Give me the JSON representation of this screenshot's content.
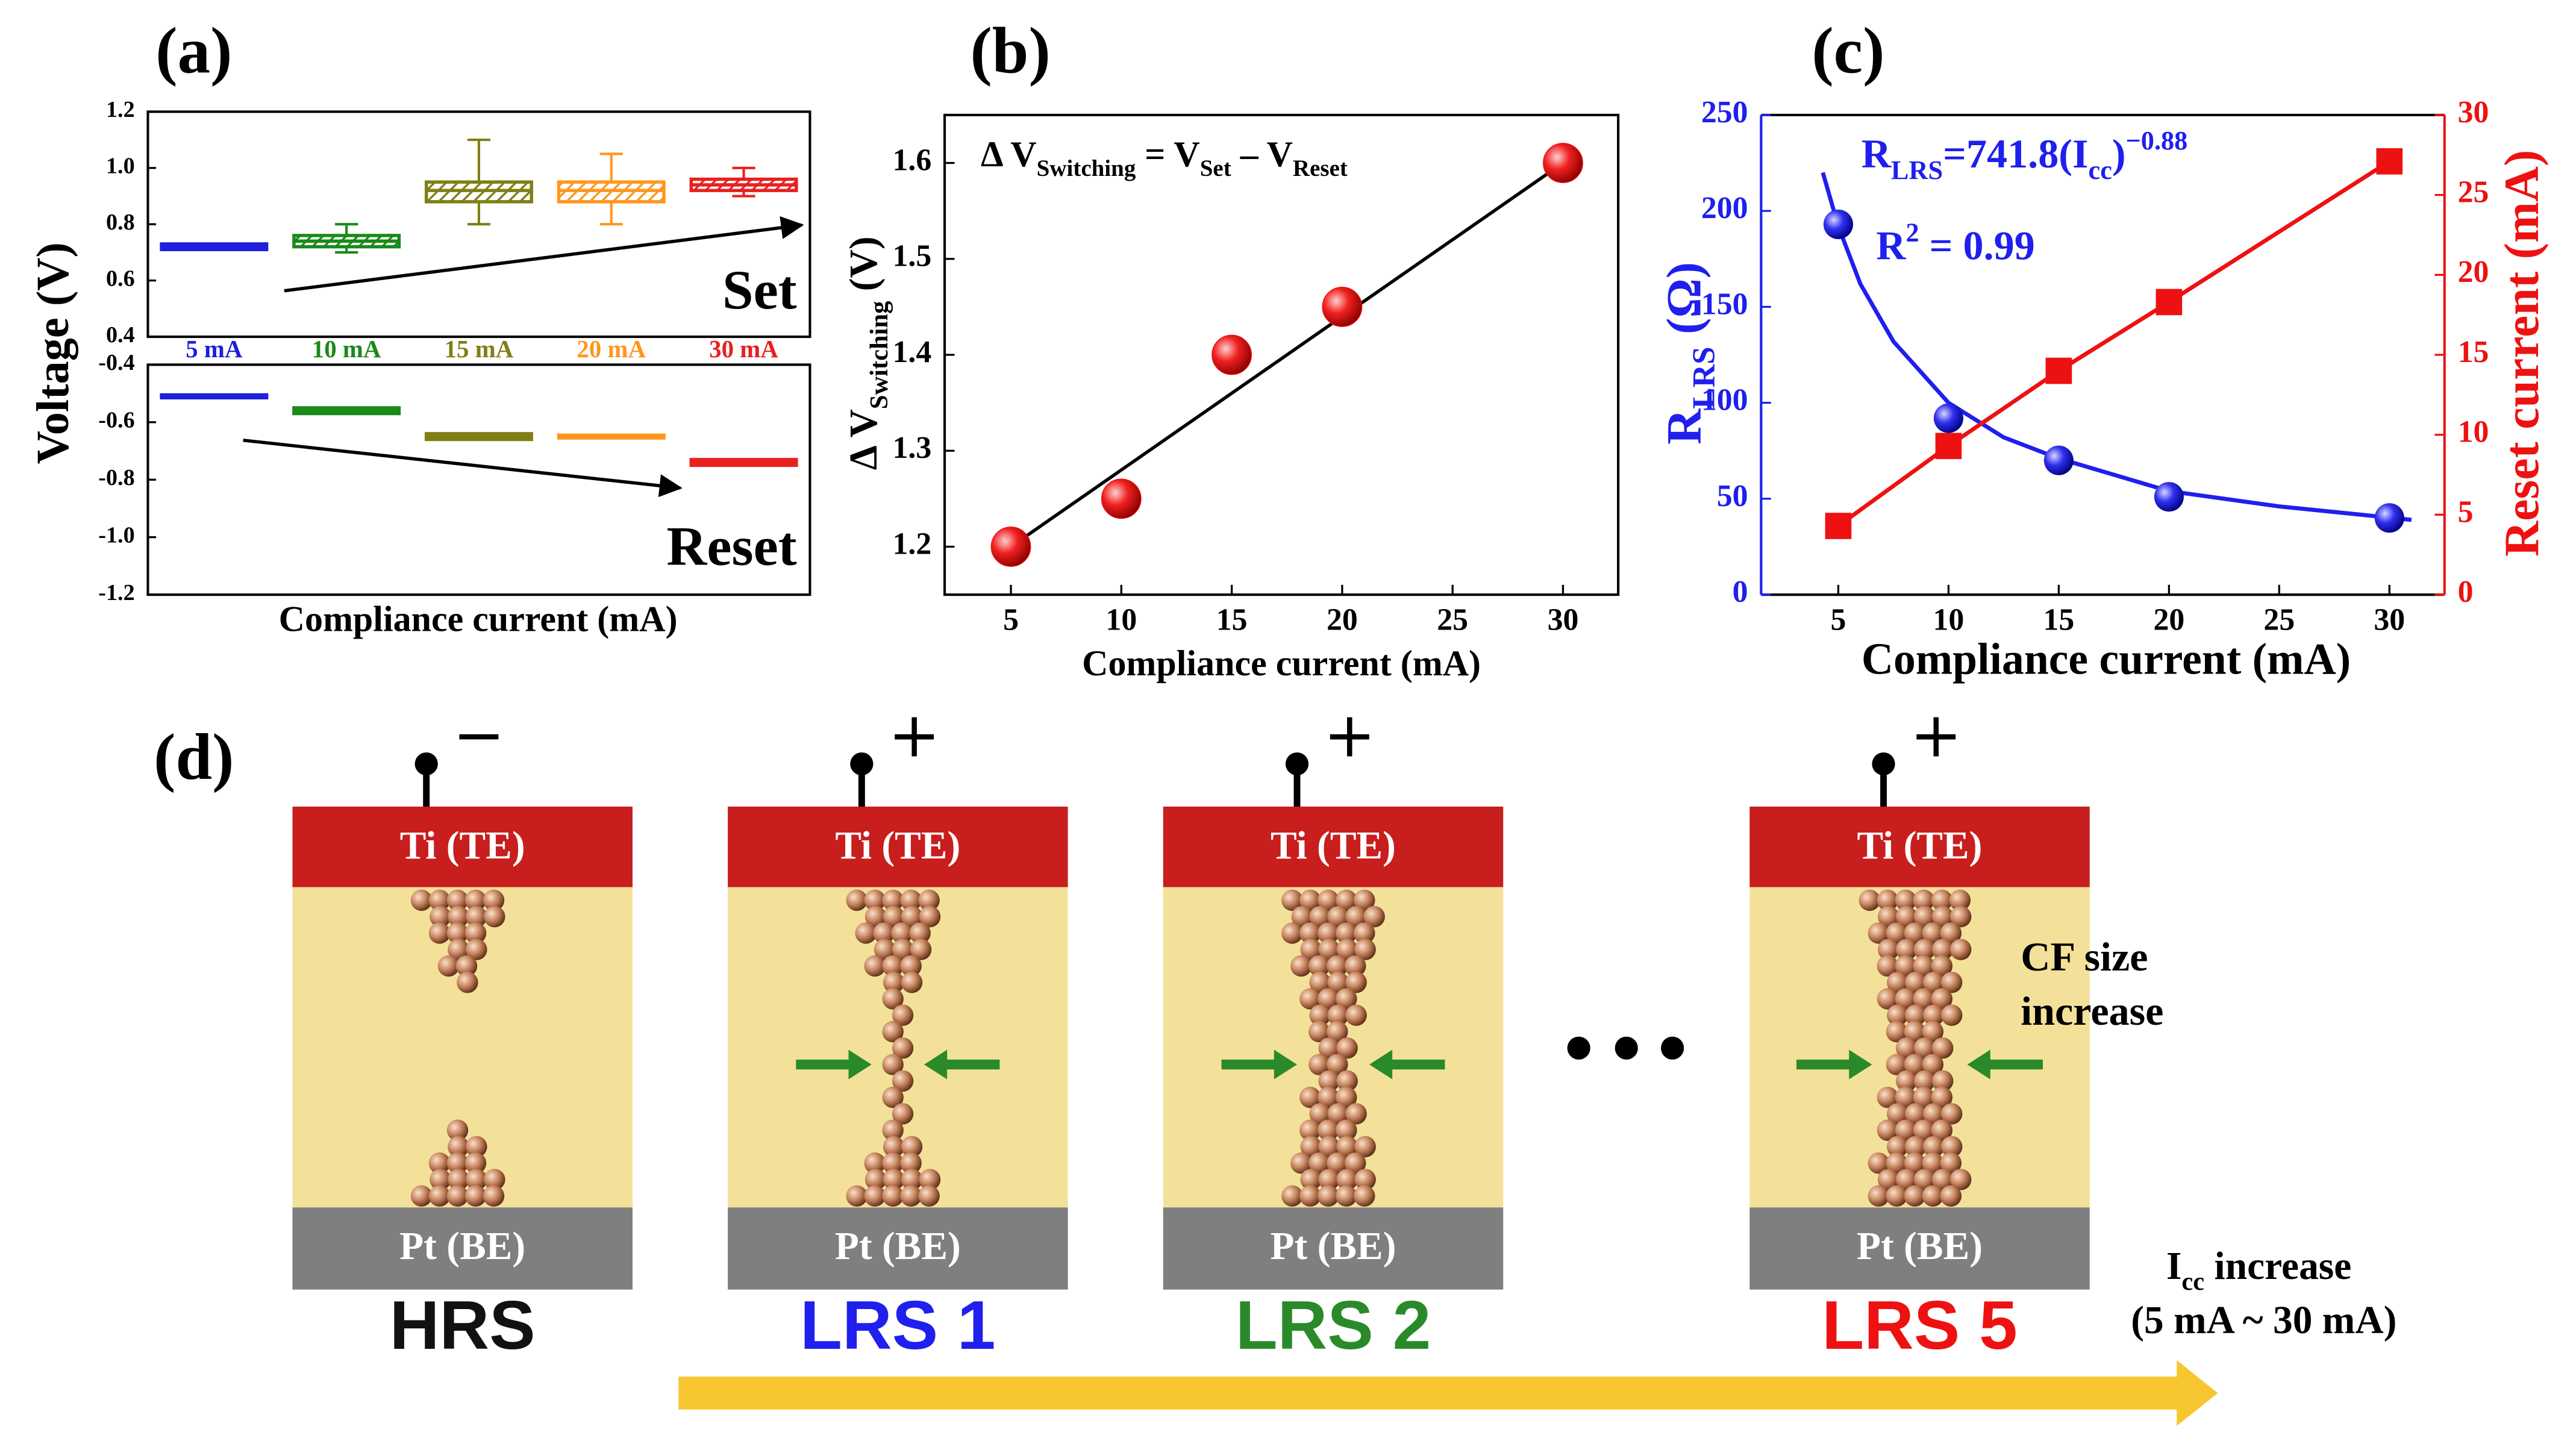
{
  "chart_data": [
    {
      "type": "box",
      "label": "(a)",
      "ylabel": "Voltage (V)",
      "xlabel": "Compliance current (mA)",
      "categories": [
        "5 mA",
        "10 mA",
        "15 mA",
        "20 mA",
        "30 mA"
      ],
      "colors": [
        "#1f1fdd",
        "#1a8a1a",
        "#7f7f14",
        "#ff961e",
        "#e82020"
      ],
      "panels": [
        {
          "annotation": "Set",
          "ylim": [
            0.4,
            1.2
          ],
          "yticks": [
            0.4,
            0.6,
            0.8,
            {
              "value": 1.0,
              "label": "1.0"
            },
            1.2
          ],
          "boxes": [
            {
              "q1": 0.71,
              "median": 0.72,
              "q3": 0.73,
              "whisker_low": 0.71,
              "whisker_high": 0.73
            },
            {
              "q1": 0.72,
              "median": 0.74,
              "q3": 0.76,
              "whisker_low": 0.7,
              "whisker_high": 0.8
            },
            {
              "q1": 0.88,
              "median": 0.92,
              "q3": 0.95,
              "whisker_low": 0.8,
              "whisker_high": 1.1
            },
            {
              "q1": 0.88,
              "median": 0.92,
              "q3": 0.95,
              "whisker_low": 0.8,
              "whisker_high": 1.05
            },
            {
              "q1": 0.92,
              "median": 0.94,
              "q3": 0.96,
              "whisker_low": 0.9,
              "whisker_high": 1.0
            }
          ]
        },
        {
          "annotation": "Reset",
          "ylim": [
            -1.2,
            -0.4
          ],
          "yticks": [
            -0.4,
            -0.6,
            -0.8,
            {
              "value": -1.0,
              "label": "-1.0"
            },
            -1.2
          ],
          "boxes": [
            {
              "q1": -0.515,
              "median": -0.51,
              "q3": -0.505,
              "whisker_low": -0.515,
              "whisker_high": -0.505
            },
            {
              "q1": -0.57,
              "median": -0.56,
              "q3": -0.55,
              "whisker_low": -0.57,
              "whisker_high": -0.55
            },
            {
              "q1": -0.66,
              "median": -0.65,
              "q3": -0.64,
              "whisker_low": -0.66,
              "whisker_high": -0.64
            },
            {
              "q1": -0.655,
              "median": -0.65,
              "q3": -0.645,
              "whisker_low": -0.655,
              "whisker_high": -0.645
            },
            {
              "q1": -0.75,
              "median": -0.74,
              "q3": -0.73,
              "whisker_low": -0.75,
              "whisker_high": -0.73
            }
          ]
        }
      ]
    },
    {
      "type": "scatter",
      "label": "(b)",
      "xlabel": "Compliance current (mA)",
      "ylabel": [
        {
          "text": "Δ V"
        },
        {
          "sub": "Switching"
        },
        {
          "text": " (V)"
        }
      ],
      "annotation": [
        {
          "text": "Δ V"
        },
        {
          "sub": "Switching"
        },
        {
          "text": " = V"
        },
        {
          "sub": "Set"
        },
        {
          "text": " – V"
        },
        {
          "sub": "Reset"
        }
      ],
      "x": [
        5,
        10,
        15,
        20,
        30
      ],
      "values": [
        1.2,
        1.25,
        1.4,
        1.45,
        1.6
      ],
      "color": "#ee1111",
      "fit": {
        "x": [
          5,
          30
        ],
        "values": [
          1.2,
          1.6
        ]
      },
      "xlim": [
        2,
        32.5
      ],
      "ylim": [
        1.15,
        1.65
      ],
      "xticks": [
        5,
        10,
        15,
        20,
        25,
        30
      ],
      "yticks": [
        1.2,
        1.3,
        1.4,
        1.5,
        1.6
      ]
    },
    {
      "type": "dual",
      "label": "(c)",
      "xlabel": "Compliance current (mA)",
      "ylabel": [
        {
          "text": "R"
        },
        {
          "sub": "LRS"
        },
        {
          "text": " (Ω)"
        }
      ],
      "y2label": "Reset current (mA)",
      "annotation": [
        {
          "text": "R"
        },
        {
          "sub": "LRS"
        },
        {
          "text": "=741.8(I"
        },
        {
          "sub": "cc"
        },
        {
          "text": ")"
        },
        {
          "sup": "−0.88"
        }
      ],
      "annotation2": [
        {
          "text": "R"
        },
        {
          "sup": "2"
        },
        {
          "text": " = 0.99"
        }
      ],
      "x": [
        5,
        10,
        15,
        20,
        30
      ],
      "series": [
        {
          "color": "#1f1fee",
          "values": [
            193,
            92,
            70,
            51,
            40
          ]
        },
        {
          "color": "#ee1111",
          "values": [
            4.3,
            9.3,
            14,
            18.3,
            27.1
          ],
          "axis": "y2"
        }
      ],
      "fit": {
        "x": [
          4.3,
          5,
          6,
          7.5,
          10,
          12.5,
          15,
          20,
          25,
          31
        ],
        "values": [
          220,
          192,
          162,
          132,
          100,
          82,
          71,
          54,
          46,
          39
        ]
      },
      "xlim": [
        1.5,
        32.5
      ],
      "ylim": [
        0,
        250
      ],
      "y2lim": [
        0,
        30
      ],
      "xticks": [
        5,
        10,
        15,
        20,
        25,
        30
      ],
      "yticks": [
        0,
        50,
        100,
        150,
        200,
        250
      ],
      "y2ticks": [
        0,
        5,
        10,
        15,
        20,
        25,
        30
      ]
    }
  ],
  "diagram": {
    "label": "(d)",
    "top_electrode": "Ti (TE)",
    "bottom_electrode": "Pt (BE)",
    "devices": [
      {
        "state": "HRS",
        "color": "#111111",
        "polarity": "−"
      },
      {
        "state": "LRS 1",
        "color": "#1f1fee",
        "polarity": "+"
      },
      {
        "state": "LRS 2",
        "color": "#2a8a2a",
        "polarity": "+"
      },
      {
        "state": "LRS 5",
        "color": "#ee1111",
        "polarity": "+"
      }
    ],
    "cf_note": [
      "CF size",
      "increase"
    ],
    "icc_note": [
      {
        "text": "I"
      },
      {
        "sub": "cc"
      },
      {
        "text": " increase"
      }
    ],
    "icc_range": "(5 mA ~ 30 mA)"
  }
}
